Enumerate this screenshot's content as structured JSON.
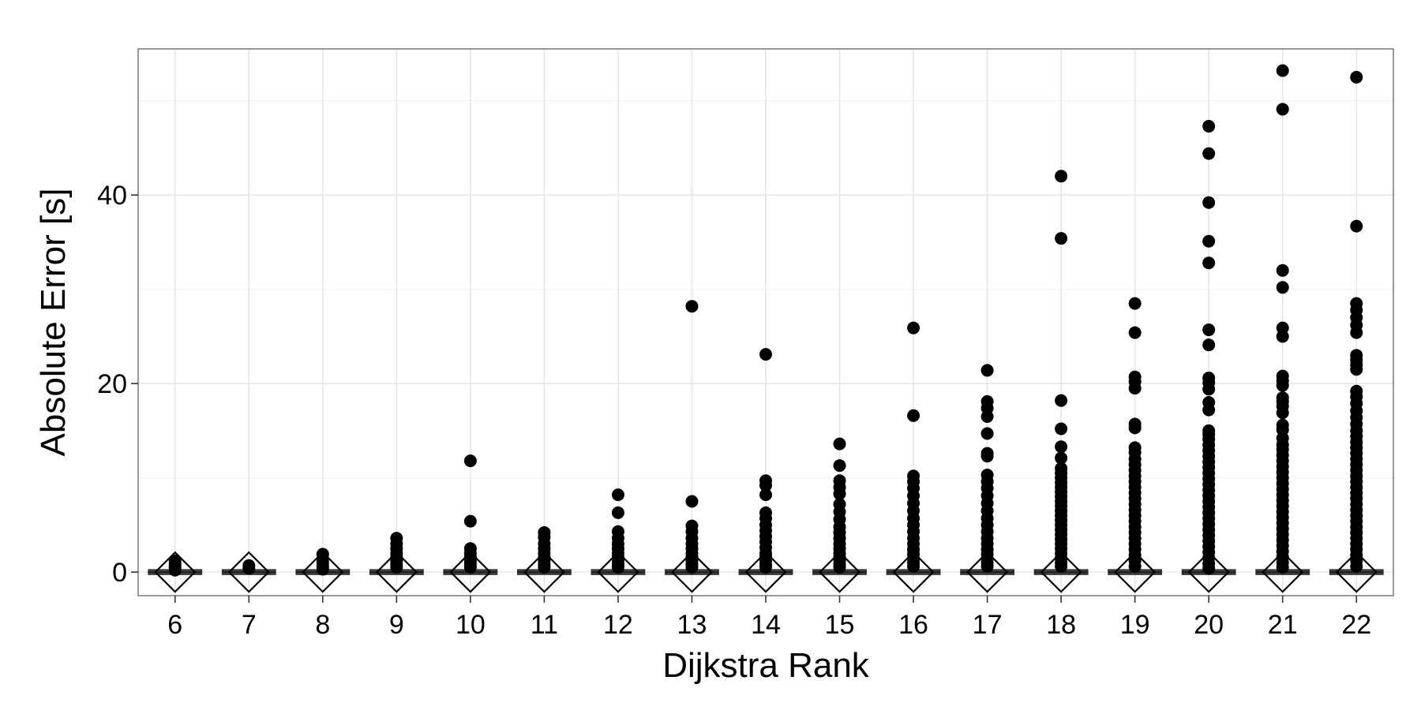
{
  "chart_data": {
    "type": "boxplot",
    "title": "",
    "xlabel": "Dijkstra Rank",
    "ylabel": "Absolute Error [s]",
    "xcategories": [
      "6",
      "7",
      "8",
      "9",
      "10",
      "11",
      "12",
      "13",
      "14",
      "15",
      "16",
      "17",
      "18",
      "19",
      "20",
      "21",
      "22"
    ],
    "yticks": [
      0,
      20,
      40
    ],
    "ylim": [
      -2.5,
      55.5
    ],
    "grid": true,
    "median_marker": "open-diamond",
    "boxes": [
      {
        "rank": "6",
        "median": 0,
        "q1": 0,
        "q3": 0,
        "mean": 0.0
      },
      {
        "rank": "7",
        "median": 0,
        "q1": 0,
        "q3": 0,
        "mean": 0.0
      },
      {
        "rank": "8",
        "median": 0,
        "q1": 0,
        "q3": 0,
        "mean": 0.0
      },
      {
        "rank": "9",
        "median": 0,
        "q1": 0,
        "q3": 0,
        "mean": 0.0
      },
      {
        "rank": "10",
        "median": 0,
        "q1": 0,
        "q3": 0,
        "mean": 0.0
      },
      {
        "rank": "11",
        "median": 0,
        "q1": 0,
        "q3": 0,
        "mean": 0.0
      },
      {
        "rank": "12",
        "median": 0,
        "q1": 0,
        "q3": 0,
        "mean": 0.0
      },
      {
        "rank": "13",
        "median": 0,
        "q1": 0,
        "q3": 0,
        "mean": 0.0
      },
      {
        "rank": "14",
        "median": 0,
        "q1": 0,
        "q3": 0,
        "mean": 0.0
      },
      {
        "rank": "15",
        "median": 0,
        "q1": 0,
        "q3": 0,
        "mean": 0.0
      },
      {
        "rank": "16",
        "median": 0,
        "q1": 0,
        "q3": 0,
        "mean": 0.0
      },
      {
        "rank": "17",
        "median": 0,
        "q1": 0,
        "q3": 0,
        "mean": 0.0
      },
      {
        "rank": "18",
        "median": 0,
        "q1": 0,
        "q3": 0,
        "mean": 0.0
      },
      {
        "rank": "19",
        "median": 0,
        "q1": 0,
        "q3": 0,
        "mean": 0.0
      },
      {
        "rank": "20",
        "median": 0,
        "q1": 0,
        "q3": 0,
        "mean": 0.0
      },
      {
        "rank": "21",
        "median": 0,
        "q1": 0,
        "q3": 0,
        "mean": 0.0
      },
      {
        "rank": "22",
        "median": 0,
        "q1": 0,
        "q3": 0,
        "mean": 0.0
      }
    ],
    "outliers": [
      {
        "rank": "6",
        "values": [
          1.2,
          0.9,
          0.6,
          0.4,
          0.2
        ]
      },
      {
        "rank": "7",
        "values": [
          0.7,
          0.4
        ]
      },
      {
        "rank": "8",
        "values": [
          1.9,
          1.4,
          1.0,
          0.6,
          0.3
        ]
      },
      {
        "rank": "9",
        "values": [
          3.6,
          3.0,
          2.5,
          2.0,
          1.6,
          1.2,
          0.8,
          0.5
        ]
      },
      {
        "rank": "10",
        "values": [
          11.8,
          5.4,
          2.5,
          2.0,
          1.6,
          1.2,
          0.8,
          0.5
        ]
      },
      {
        "rank": "11",
        "values": [
          4.2,
          3.7,
          3.0,
          2.5,
          2.0,
          1.6,
          1.2,
          0.8,
          0.5
        ]
      },
      {
        "rank": "12",
        "values": [
          8.2,
          6.3,
          4.3,
          3.6,
          3.0,
          2.5,
          2.0,
          1.6,
          1.2,
          0.8,
          0.5
        ]
      },
      {
        "rank": "13",
        "values": [
          28.2,
          7.5,
          4.9,
          4.3,
          3.6,
          3.0,
          2.5,
          2.0,
          1.6,
          1.2,
          0.8,
          0.5
        ]
      },
      {
        "rank": "14",
        "values": [
          23.1,
          9.7,
          9.2,
          8.2,
          6.3,
          5.7,
          5.0,
          4.4,
          3.8,
          3.2,
          2.6,
          2.0,
          1.6,
          1.2,
          0.8,
          0.5
        ]
      },
      {
        "rank": "15",
        "values": [
          13.6,
          11.3,
          9.7,
          9.0,
          8.3,
          7.2,
          6.4,
          5.6,
          4.8,
          4.2,
          3.6,
          3.0,
          2.5,
          2.0,
          1.6,
          1.2,
          0.8,
          0.5
        ]
      },
      {
        "rank": "16",
        "values": [
          25.9,
          16.6,
          10.2,
          9.6,
          8.9,
          8.1,
          7.3,
          6.5,
          5.7,
          5.0,
          4.3,
          3.6,
          3.0,
          2.4,
          1.9,
          1.4,
          1.0,
          0.6
        ]
      },
      {
        "rank": "17",
        "values": [
          21.4,
          18.1,
          17.4,
          16.5,
          14.7,
          12.6,
          12.3,
          10.3,
          9.6,
          8.9,
          8.1,
          7.3,
          6.5,
          5.7,
          5.0,
          4.3,
          3.6,
          3.0,
          2.4,
          1.9,
          1.4,
          1.0,
          0.6
        ]
      },
      {
        "rank": "18",
        "values": [
          42.0,
          35.4,
          18.2,
          15.2,
          13.3,
          12.1,
          11.0,
          10.5,
          10.0,
          9.5,
          9.0,
          8.5,
          8.0,
          7.5,
          7.0,
          6.5,
          6.0,
          5.5,
          5.0,
          4.5,
          4.0,
          3.5,
          3.0,
          2.5,
          2.0,
          1.5,
          1.0,
          0.6
        ]
      },
      {
        "rank": "19",
        "values": [
          28.5,
          25.4,
          20.7,
          20.2,
          19.5,
          15.7,
          15.3,
          13.2,
          12.7,
          12.0,
          11.4,
          10.8,
          10.2,
          9.6,
          9.0,
          8.4,
          7.8,
          7.2,
          6.6,
          6.0,
          5.4,
          4.8,
          4.2,
          3.6,
          3.0,
          2.4,
          1.8,
          1.2,
          0.6
        ]
      },
      {
        "rank": "20",
        "values": [
          47.3,
          44.4,
          39.2,
          35.1,
          32.8,
          25.7,
          24.1,
          20.6,
          20.1,
          19.4,
          18.0,
          17.2,
          15.0,
          14.6,
          14.1,
          13.5,
          12.9,
          12.3,
          11.7,
          11.1,
          10.5,
          9.9,
          9.3,
          8.7,
          8.1,
          7.5,
          6.9,
          6.3,
          5.7,
          5.1,
          4.5,
          3.9,
          3.3,
          2.7,
          2.1,
          1.5,
          0.9,
          0.4
        ]
      },
      {
        "rank": "21",
        "values": [
          53.2,
          49.1,
          32.0,
          30.2,
          25.9,
          25.0,
          20.8,
          20.3,
          19.8,
          18.5,
          18.1,
          17.6,
          16.9,
          15.6,
          15.1,
          14.2,
          13.5,
          13.0,
          12.4,
          11.8,
          11.2,
          10.6,
          10.0,
          9.4,
          8.8,
          8.2,
          7.6,
          7.0,
          6.4,
          5.8,
          5.2,
          4.6,
          4.0,
          3.4,
          2.8,
          2.2,
          1.6,
          1.0,
          0.5
        ]
      },
      {
        "rank": "22",
        "values": [
          52.5,
          36.7,
          28.5,
          27.8,
          27.0,
          26.2,
          25.4,
          23.0,
          22.5,
          22.0,
          21.5,
          19.2,
          18.6,
          17.9,
          17.1,
          16.4,
          15.7,
          15.0,
          14.4,
          13.8,
          13.2,
          12.6,
          12.0,
          11.4,
          10.8,
          10.2,
          9.6,
          9.0,
          8.4,
          7.8,
          7.2,
          6.6,
          6.0,
          5.4,
          4.8,
          4.2,
          3.6,
          3.0,
          2.4,
          1.8,
          1.2,
          0.6
        ]
      }
    ]
  }
}
